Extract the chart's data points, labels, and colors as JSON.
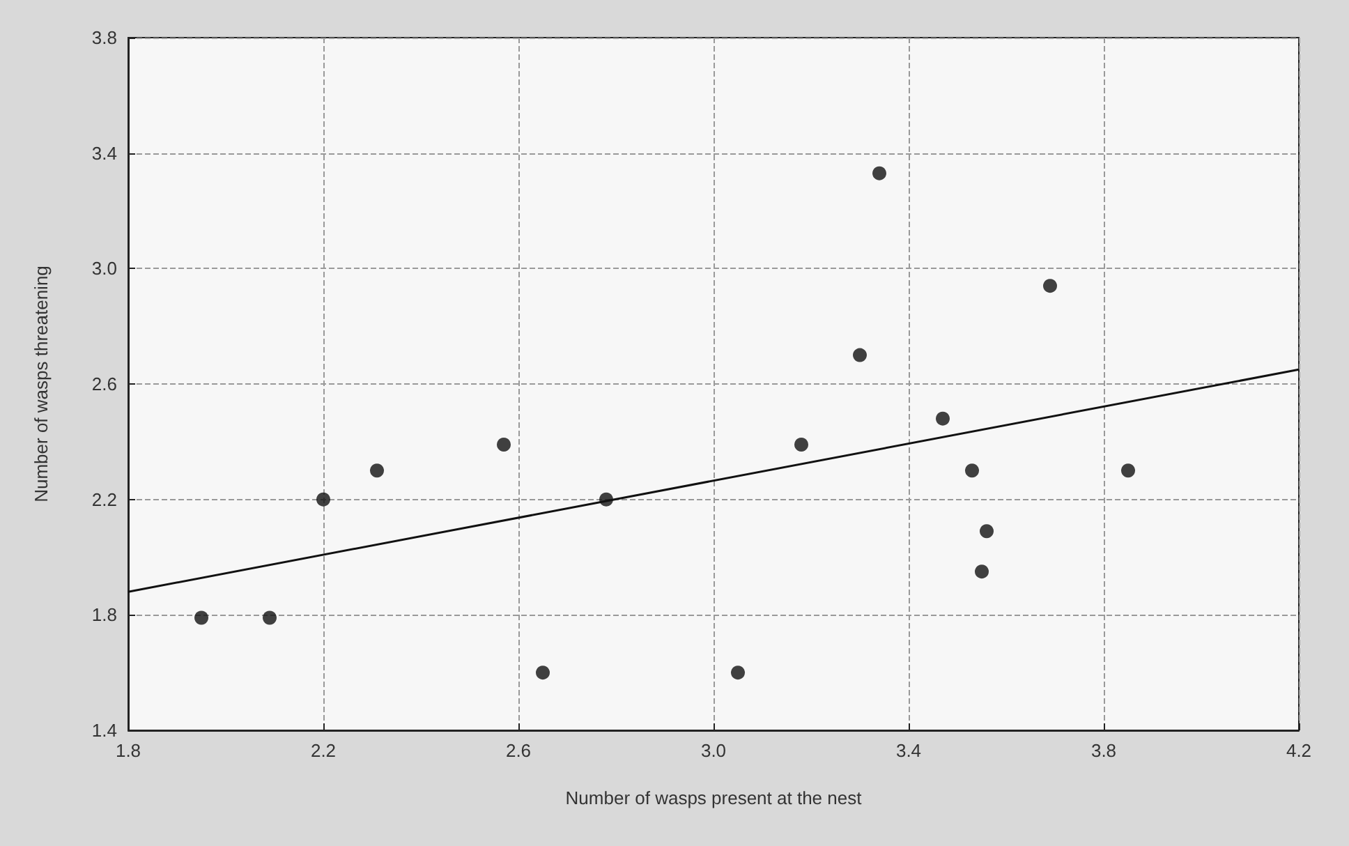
{
  "chart_data": {
    "type": "scatter",
    "xlabel": "Number of wasps present at the nest",
    "ylabel": "Number of wasps threatening",
    "x": [
      1.95,
      2.09,
      2.2,
      2.31,
      2.57,
      2.65,
      2.78,
      3.05,
      3.18,
      3.3,
      3.34,
      3.47,
      3.53,
      3.56,
      3.55,
      3.69,
      3.85
    ],
    "series": [
      {
        "color": "#111111",
        "marker": "circle",
        "values": [
          1.79,
          1.79,
          2.2,
          2.3,
          2.39,
          1.6,
          2.2,
          1.6,
          2.39,
          2.7,
          3.33,
          2.48,
          2.3,
          2.09,
          1.95,
          2.94,
          2.3
        ]
      },
      {
        "type": "line",
        "color": "#111111",
        "x": [
          1.8,
          4.2
        ],
        "values": [
          1.88,
          2.65
        ],
        "marker": "none",
        "line_style": "solid"
      }
    ],
    "xlim": [
      1.8,
      4.2
    ],
    "xticks": [
      1.8,
      2.2,
      2.6,
      {
        "value": 3,
        "label": "3.0"
      },
      3.4,
      3.8,
      4.2
    ],
    "ylim": [
      1.4,
      3.8
    ],
    "yticks": [
      1.4,
      1.8,
      2.2,
      2.6,
      {
        "value": 3,
        "label": "3.0"
      },
      3.4,
      3.8
    ],
    "grid": true
  }
}
